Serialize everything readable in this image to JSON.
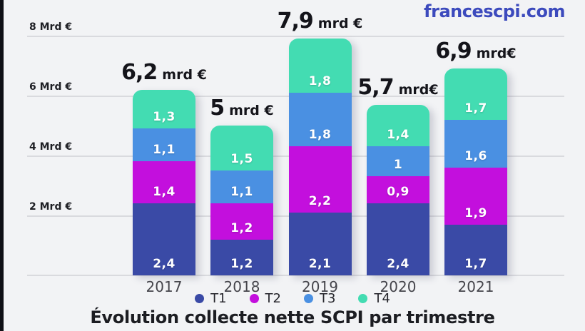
{
  "brand": {
    "label": "francescpi.com",
    "color": "#3c4abd"
  },
  "page": {
    "background": "#f2f3f5"
  },
  "chart_data": {
    "type": "bar",
    "stacked": true,
    "title": "Évolution collecte nette SCPI par trimestre",
    "categories": [
      "2017",
      "2018",
      "2019",
      "2020",
      "2021"
    ],
    "series": [
      {
        "name": "T1",
        "color": "#3a4aa6",
        "values": [
          2.4,
          1.2,
          2.1,
          2.4,
          1.7
        ],
        "labels": [
          "2,4",
          "1,2",
          "2,1",
          "2,4",
          "1,7"
        ]
      },
      {
        "name": "T2",
        "color": "#c30fdd",
        "values": [
          1.4,
          1.2,
          2.2,
          0.9,
          1.9
        ],
        "labels": [
          "1,4",
          "1,2",
          "2,2",
          "0,9",
          "1,9"
        ]
      },
      {
        "name": "T3",
        "color": "#4a90e2",
        "values": [
          1.1,
          1.1,
          1.8,
          1.0,
          1.6
        ],
        "labels": [
          "1,1",
          "1,1",
          "1,8",
          "1",
          "1,6"
        ]
      },
      {
        "name": "T4",
        "color": "#43dcb2",
        "values": [
          1.3,
          1.5,
          1.8,
          1.4,
          1.7
        ],
        "labels": [
          "1,3",
          "1,5",
          "1,8",
          "1,4",
          "1,7"
        ]
      }
    ],
    "totals": [
      {
        "value": "6,2",
        "unit": "mrd €"
      },
      {
        "value": "5",
        "unit": "mrd €"
      },
      {
        "value": "7,9",
        "unit": "mrd €"
      },
      {
        "value": "5,7",
        "unit": "mrd€"
      },
      {
        "value": "6,9",
        "unit": "mrd€"
      }
    ],
    "y_ticks": [
      {
        "value": 8,
        "label": "8 Mrd €"
      },
      {
        "value": 6,
        "label": "6 Mrd €"
      },
      {
        "value": 4,
        "label": "4 Mrd €"
      },
      {
        "value": 2,
        "label": "2 Mrd €"
      }
    ],
    "ylim": [
      0,
      8
    ],
    "grid": "horizontal",
    "legend": [
      "T1",
      "T2",
      "T3",
      "T4"
    ],
    "legend_position": "bottom"
  }
}
